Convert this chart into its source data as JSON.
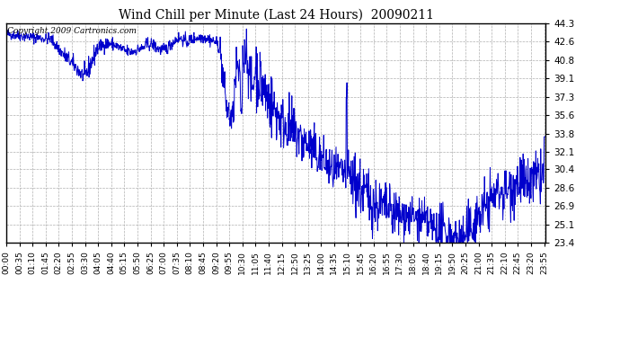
{
  "title": "Wind Chill per Minute (Last 24 Hours)  20090211",
  "copyright_text": "Copyright 2009 Cartronics.com",
  "line_color": "#0000cc",
  "background_color": "#ffffff",
  "grid_color": "#b0b0b0",
  "yticks": [
    23.4,
    25.1,
    26.9,
    28.6,
    30.4,
    32.1,
    33.8,
    35.6,
    37.3,
    39.1,
    40.8,
    42.6,
    44.3
  ],
  "ymin": 23.4,
  "ymax": 44.3,
  "xtick_labels": [
    "00:00",
    "00:35",
    "01:10",
    "01:45",
    "02:20",
    "02:55",
    "03:30",
    "04:05",
    "04:40",
    "05:15",
    "05:50",
    "06:25",
    "07:00",
    "07:35",
    "08:10",
    "08:45",
    "09:20",
    "09:55",
    "10:30",
    "11:05",
    "11:40",
    "12:15",
    "12:50",
    "13:25",
    "14:00",
    "14:35",
    "15:10",
    "15:45",
    "16:20",
    "16:55",
    "17:30",
    "18:05",
    "18:40",
    "19:15",
    "19:50",
    "20:25",
    "21:00",
    "21:35",
    "22:10",
    "22:45",
    "23:20",
    "23:55"
  ],
  "seed": 42,
  "figwidth": 6.9,
  "figheight": 3.75,
  "dpi": 100
}
